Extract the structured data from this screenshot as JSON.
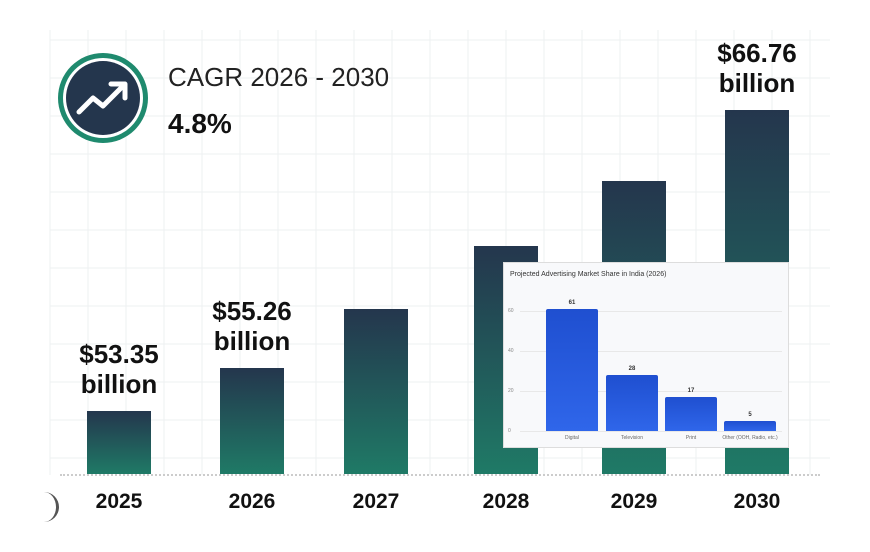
{
  "cagr": {
    "label": "CAGR 2026 - 2030",
    "value": "4.8%",
    "icon": "trending-up-icon",
    "ring_color": "#1f8a6e",
    "fill_color": "#24364d"
  },
  "chart_data": [
    {
      "type": "bar",
      "categories": [
        "2025",
        "2026",
        "2027",
        "2028",
        "2029",
        "2030"
      ],
      "values": [
        53.35,
        55.26,
        57.91,
        60.69,
        63.6,
        66.76
      ],
      "data_labels": [
        [
          "$53.35",
          "billion"
        ],
        [
          "$55.26",
          "billion"
        ],
        null,
        null,
        null,
        [
          "$66.76",
          "billion"
        ]
      ],
      "ylabel": "",
      "xlabel": "",
      "grid": true,
      "bar_gradient": [
        "#24364d",
        "#1f7a66"
      ]
    },
    {
      "type": "bar",
      "title": "Projected Advertising Market Share in India (2026)",
      "categories": [
        "Digital",
        "Television",
        "Print",
        "Other (OOH, Radio, etc.)"
      ],
      "values": [
        61,
        28,
        17,
        5
      ],
      "data_labels": [
        "61",
        "28",
        "17",
        "5"
      ],
      "yticks": [
        "0",
        "20",
        "40",
        "60"
      ],
      "ylim": [
        0,
        65
      ],
      "grid": true,
      "bar_color": "#2a5ee6"
    }
  ]
}
